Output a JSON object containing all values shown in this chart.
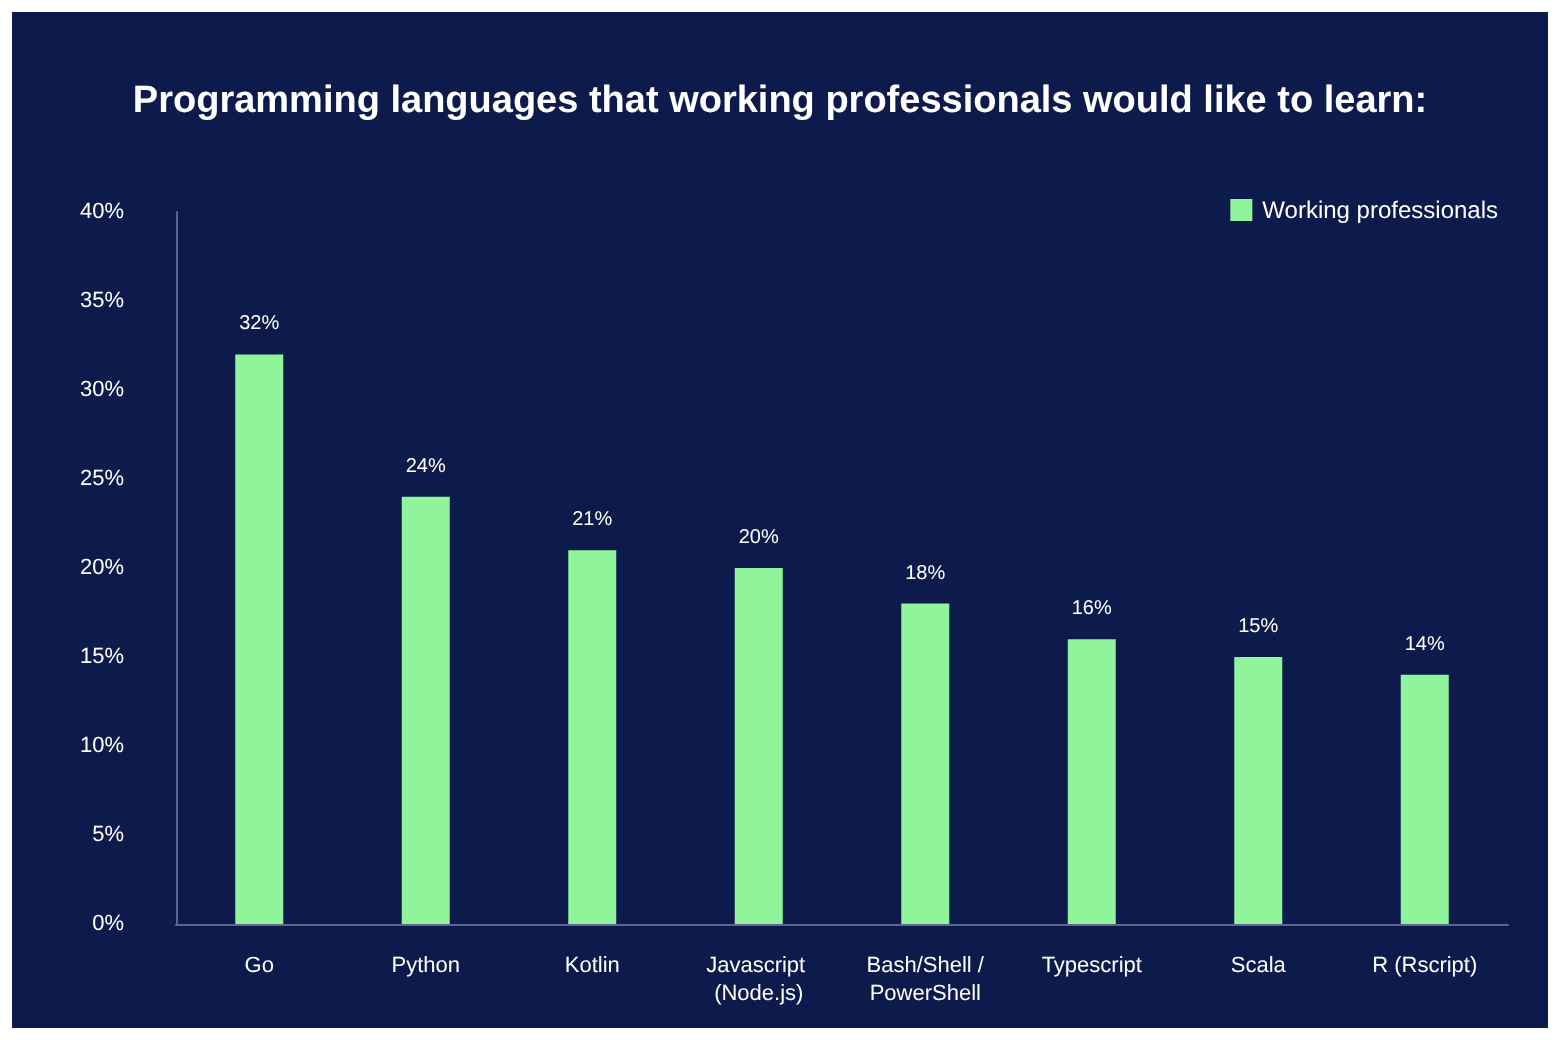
{
  "chart_data": {
    "type": "bar",
    "title": "Programming languages that working professionals would like to learn:",
    "categories": [
      "Go",
      "Python",
      "Kotlin",
      "Javascript (Node.js)",
      "Bash/Shell /PowerShell",
      "Typescript",
      "Scala",
      "R (Rscript)"
    ],
    "series": [
      {
        "name": "Working professionals",
        "color": "#90f59a",
        "values": [
          32,
          24,
          21,
          20,
          18,
          16,
          15,
          14
        ]
      }
    ],
    "ylim": [
      0,
      40
    ],
    "yticks": [
      {
        "value": 0,
        "label": "0%"
      },
      {
        "value": 5,
        "label": "5%"
      },
      {
        "value": 10,
        "label": "10%"
      },
      {
        "value": 15,
        "label": "15%"
      },
      {
        "value": 20,
        "label": "20%"
      },
      {
        "value": 25,
        "label": "25%"
      },
      {
        "value": 30,
        "label": "30%"
      },
      {
        "value": 35,
        "label": "35%"
      },
      {
        "value": 40,
        "label": "40%"
      }
    ],
    "value_labels": [
      "32%",
      "24%",
      "21%",
      "20%",
      "18%",
      "16%",
      "15%",
      "14%"
    ],
    "legend": "top right",
    "grid": false
  }
}
